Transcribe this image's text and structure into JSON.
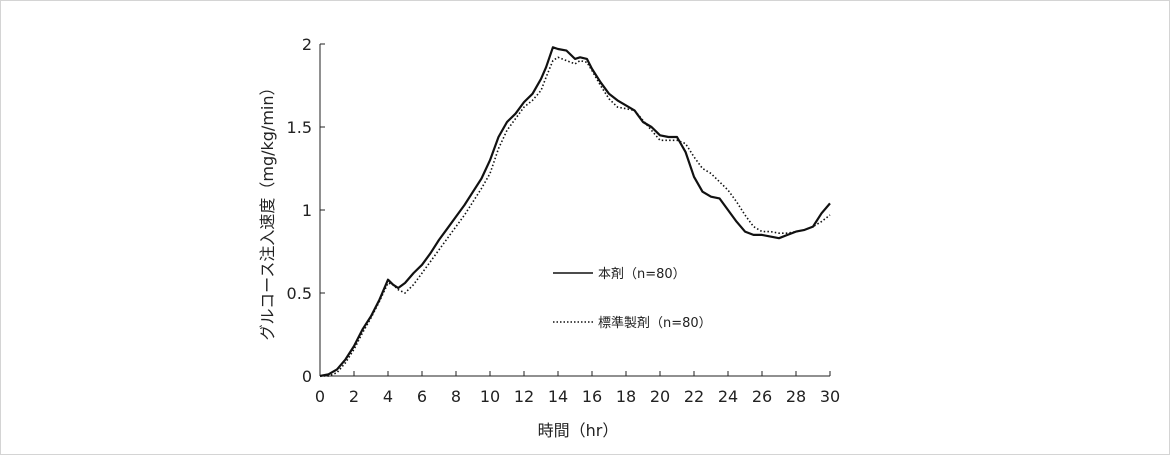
{
  "chart_data": {
    "type": "line",
    "xlabel": "時間（hr）",
    "ylabel": "グルコース注入速度（mg/kg/min）",
    "xlim": [
      0,
      30
    ],
    "ylim": [
      0,
      2
    ],
    "xticks": [
      "0",
      "2",
      "4",
      "6",
      "8",
      "10",
      "12",
      "14",
      "16",
      "18",
      "20",
      "22",
      "24",
      "26",
      "28",
      "30"
    ],
    "yticks": [
      "0",
      "0.5",
      "1",
      "1.5",
      "2"
    ],
    "grid": false,
    "legend_position": "center-right inside plot",
    "series": [
      {
        "name": "本剤（n=80）",
        "style": "solid",
        "color": "#111111",
        "x": [
          0,
          0.5,
          1,
          1.5,
          2,
          2.5,
          3,
          3.5,
          4,
          4.3,
          4.6,
          5,
          5.5,
          6,
          6.5,
          7,
          7.5,
          8,
          8.5,
          9,
          9.5,
          10,
          10.5,
          11,
          11.5,
          12,
          12.5,
          13,
          13.3,
          13.7,
          14,
          14.5,
          15,
          15.3,
          15.7,
          16,
          16.5,
          17,
          17.5,
          18,
          18.5,
          19,
          19.5,
          20,
          20.5,
          21,
          21.5,
          22,
          22.5,
          23,
          23.5,
          24,
          24.5,
          25,
          25.5,
          26,
          26.5,
          27,
          27.5,
          28,
          28.5,
          29,
          29.5,
          30
        ],
        "y": [
          0,
          0.01,
          0.04,
          0.1,
          0.18,
          0.28,
          0.36,
          0.46,
          0.58,
          0.55,
          0.53,
          0.56,
          0.62,
          0.67,
          0.74,
          0.82,
          0.89,
          0.96,
          1.03,
          1.11,
          1.19,
          1.3,
          1.44,
          1.53,
          1.58,
          1.65,
          1.7,
          1.79,
          1.86,
          1.98,
          1.97,
          1.96,
          1.91,
          1.92,
          1.91,
          1.85,
          1.77,
          1.7,
          1.66,
          1.63,
          1.6,
          1.53,
          1.5,
          1.45,
          1.44,
          1.44,
          1.35,
          1.2,
          1.11,
          1.08,
          1.07,
          1.0,
          0.93,
          0.87,
          0.85,
          0.85,
          0.84,
          0.83,
          0.85,
          0.87,
          0.88,
          0.9,
          0.98,
          1.04
        ]
      },
      {
        "name": "標準製剤（n=80）",
        "style": "dotted",
        "color": "#111111",
        "x": [
          0,
          0.5,
          1,
          1.5,
          2,
          2.5,
          3,
          3.5,
          4,
          4.3,
          4.6,
          5,
          5.5,
          6,
          6.5,
          7,
          7.5,
          8,
          8.5,
          9,
          9.5,
          10,
          10.5,
          11,
          11.5,
          12,
          12.5,
          13,
          13.3,
          13.7,
          14,
          14.5,
          15,
          15.3,
          15.7,
          16,
          16.5,
          17,
          17.5,
          18,
          18.5,
          19,
          19.5,
          20,
          20.5,
          21,
          21.5,
          22,
          22.5,
          23,
          23.5,
          24,
          24.5,
          25,
          25.5,
          26,
          26.5,
          27,
          27.5,
          28,
          28.5,
          29,
          29.5,
          30
        ],
        "y": [
          0,
          0.0,
          0.02,
          0.08,
          0.16,
          0.26,
          0.35,
          0.45,
          0.56,
          0.55,
          0.52,
          0.5,
          0.55,
          0.62,
          0.69,
          0.76,
          0.83,
          0.9,
          0.97,
          1.05,
          1.13,
          1.22,
          1.37,
          1.48,
          1.55,
          1.62,
          1.66,
          1.72,
          1.8,
          1.9,
          1.92,
          1.9,
          1.88,
          1.9,
          1.89,
          1.84,
          1.75,
          1.67,
          1.62,
          1.61,
          1.6,
          1.54,
          1.48,
          1.42,
          1.42,
          1.42,
          1.4,
          1.32,
          1.25,
          1.22,
          1.17,
          1.12,
          1.05,
          0.97,
          0.9,
          0.87,
          0.87,
          0.86,
          0.86,
          0.87,
          0.88,
          0.9,
          0.93,
          0.97
        ]
      }
    ]
  }
}
